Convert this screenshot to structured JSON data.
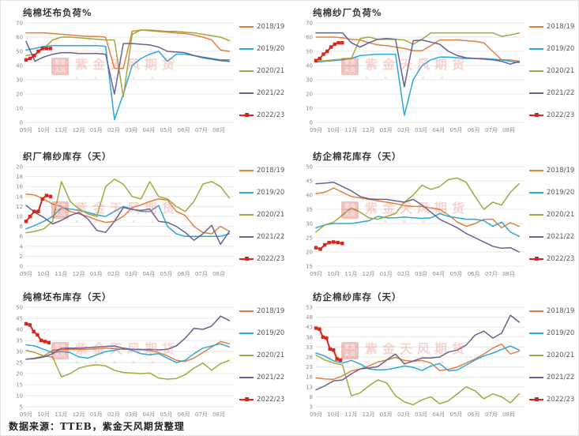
{
  "page": {
    "source_note": "数据来源：TTEB，紫金天风期货整理",
    "watermark": {
      "seal_line1": "紫金",
      "seal_line2": "天风",
      "text": "紫金天风期货"
    }
  },
  "colors": {
    "s2018": "#E2813B",
    "s2019": "#2BA8DC",
    "s2020": "#A2A83E",
    "s2021": "#67618F",
    "s2022": "#D9251D",
    "grid": "#e7e7e7",
    "tick_text": "#8c8c8c"
  },
  "chart_data": [
    {
      "type": "line",
      "title": "纯棉坯布负荷%",
      "x_tick_labels": [
        "09月",
        "10月",
        "11月",
        "12月",
        "01月",
        "02月",
        "03月",
        "04月",
        "05月",
        "06月",
        "07月",
        "08月"
      ],
      "ylim": [
        0,
        70
      ],
      "yticks": [
        0,
        10,
        20,
        30,
        40,
        50,
        60,
        70
      ],
      "grid": true,
      "legend_position": "right",
      "series": [
        {
          "name": "2018/19",
          "color": "#E2813B",
          "x_range": [
            0,
            11.6
          ],
          "values": [
            63,
            63,
            63,
            62.5,
            62,
            61.5,
            61,
            60.5,
            60.5,
            60,
            38,
            38,
            64,
            65,
            64.5,
            64,
            63.5,
            63,
            62.5,
            61.5,
            60,
            58,
            51,
            50
          ]
        },
        {
          "name": "2019/20",
          "color": "#2BA8DC",
          "x_range": [
            0,
            11.6
          ],
          "values": [
            51,
            52,
            53.5,
            54,
            54,
            54,
            54,
            54,
            54,
            53.5,
            2,
            20,
            40,
            45,
            48,
            50,
            43,
            48,
            48,
            47,
            46,
            45,
            44,
            44
          ]
        },
        {
          "name": "2020/21",
          "color": "#A2A83E",
          "x_range": [
            0,
            11.6
          ],
          "values": [
            47,
            48,
            52,
            58,
            60,
            60,
            59.5,
            59,
            58.5,
            58,
            58,
            18,
            62,
            65,
            65,
            64.5,
            64,
            64,
            63.5,
            63,
            62,
            61,
            60,
            57.5
          ]
        },
        {
          "name": "2021/22",
          "color": "#67618F",
          "x_range": [
            0,
            11.6
          ],
          "values": [
            57,
            43,
            46,
            48,
            49,
            49,
            48.5,
            48.5,
            48.5,
            48,
            20,
            55.5,
            55.5,
            55,
            54.5,
            53,
            50,
            49.5,
            49,
            47,
            45.5,
            44.5,
            43.5,
            43
          ]
        },
        {
          "name": "2022/23",
          "color": "#D9251D",
          "marker": true,
          "x_range": [
            0,
            1.4
          ],
          "values": [
            44,
            45,
            47,
            50,
            52,
            52,
            52
          ]
        }
      ]
    },
    {
      "type": "line",
      "title": "纯棉纱厂负荷%",
      "x_tick_labels": [
        "09月",
        "10月",
        "11月",
        "12月",
        "01月",
        "02月",
        "03月",
        "04月",
        "05月",
        "06月",
        "07月",
        "08月"
      ],
      "ylim": [
        0,
        70
      ],
      "yticks": [
        0,
        10,
        20,
        30,
        40,
        50,
        60,
        70
      ],
      "grid": true,
      "legend_position": "right",
      "series": [
        {
          "name": "2018/19",
          "color": "#E2813B",
          "x_range": [
            0,
            11.6
          ],
          "values": [
            60,
            60,
            60,
            59.5,
            58.5,
            58,
            56,
            54.5,
            54,
            53,
            52,
            50.5,
            50.5,
            54,
            58,
            58,
            58,
            57.5,
            57,
            56,
            50,
            44,
            44,
            43
          ]
        },
        {
          "name": "2019/20",
          "color": "#2BA8DC",
          "x_range": [
            0,
            11.6
          ],
          "values": [
            42.5,
            43,
            43.5,
            44,
            45,
            47,
            47.5,
            48,
            48,
            48,
            5,
            30,
            40,
            44,
            46,
            46,
            45.5,
            45,
            45,
            45,
            44.5,
            44,
            43,
            42
          ]
        },
        {
          "name": "2020/21",
          "color": "#A2A83E",
          "x_range": [
            0,
            11.6
          ],
          "values": [
            43,
            43.5,
            44,
            44.5,
            45,
            59,
            60,
            58.5,
            58.5,
            58.5,
            58,
            55,
            58.5,
            63,
            63,
            63,
            63,
            63,
            63,
            63,
            63,
            60.5,
            61.5,
            63
          ]
        },
        {
          "name": "2021/22",
          "color": "#67618F",
          "x_range": [
            0,
            11.6
          ],
          "values": [
            63,
            63,
            63,
            63,
            56,
            53,
            56,
            58.5,
            59,
            58.5,
            25,
            57.5,
            58,
            56.5,
            55,
            50,
            47,
            45.5,
            45,
            44.5,
            44,
            43,
            41,
            43
          ]
        },
        {
          "name": "2022/23",
          "color": "#D9251D",
          "marker": true,
          "x_range": [
            0,
            1.5
          ],
          "values": [
            43.5,
            45,
            48,
            50,
            53,
            55,
            56,
            56
          ]
        }
      ]
    },
    {
      "type": "line",
      "title": "织厂棉纱库存（天）",
      "x_tick_labels": [
        "09月",
        "10月",
        "11月",
        "12月",
        "01月",
        "02月",
        "03月",
        "04月",
        "05月",
        "06月",
        "07月",
        "08月"
      ],
      "ylim": [
        0,
        20
      ],
      "yticks": [
        0,
        2,
        4,
        6,
        8,
        10,
        12,
        14,
        16,
        18,
        20
      ],
      "grid": true,
      "legend_position": "right",
      "series": [
        {
          "name": "2018/19",
          "color": "#E2813B",
          "x_range": [
            0,
            11.6
          ],
          "values": [
            14.5,
            14.3,
            13.5,
            12.5,
            12,
            11,
            10.5,
            10,
            9.3,
            8.8,
            9,
            10,
            11.8,
            12.3,
            13,
            13.5,
            13.3,
            11,
            10.2,
            8,
            6.8,
            6.5,
            8,
            7
          ]
        },
        {
          "name": "2019/20",
          "color": "#2BA8DC",
          "x_range": [
            0,
            11.6
          ],
          "values": [
            7.5,
            8.2,
            9,
            10,
            11.7,
            11.5,
            11.2,
            10.8,
            10.3,
            10,
            11,
            12,
            11.5,
            11,
            11,
            12.2,
            8,
            6.5,
            6,
            6,
            6,
            6,
            6,
            6.5
          ]
        },
        {
          "name": "2020/21",
          "color": "#A2A83E",
          "x_range": [
            0,
            11.6
          ],
          "values": [
            6.7,
            7,
            7.5,
            9,
            17,
            13,
            11.5,
            10.5,
            10,
            16,
            17.5,
            16.5,
            14,
            13.5,
            17,
            14,
            13.5,
            12,
            11,
            13,
            16.5,
            17,
            16,
            13.7
          ]
        },
        {
          "name": "2021/22",
          "color": "#67618F",
          "x_range": [
            0,
            11.6
          ],
          "values": [
            12.2,
            10.8,
            9.8,
            8.5,
            9.2,
            10.2,
            10.8,
            9.5,
            7.2,
            6.8,
            9,
            11.8,
            11.4,
            11.2,
            11.5,
            9,
            8.8,
            8,
            6.8,
            5.2,
            6.5,
            8.2,
            4.4,
            7
          ]
        },
        {
          "name": "2022/23",
          "color": "#D9251D",
          "marker": true,
          "x_range": [
            0,
            1.4
          ],
          "values": [
            9,
            10,
            11,
            11,
            13.5,
            14.2,
            14
          ]
        }
      ]
    },
    {
      "type": "line",
      "title": "纺企棉花库存（天）",
      "x_tick_labels": [
        "09月",
        "10月",
        "11月",
        "12月",
        "01月",
        "02月",
        "03月",
        "04月",
        "05月",
        "06月",
        "07月",
        "08月"
      ],
      "ylim": [
        15,
        50
      ],
      "yticks": [
        15,
        20,
        25,
        30,
        35,
        40,
        45,
        50
      ],
      "grid": true,
      "legend_position": "right",
      "series": [
        {
          "name": "2018/19",
          "color": "#E2813B",
          "x_range": [
            0,
            11.6
          ],
          "values": [
            40.5,
            41,
            42.5,
            41,
            39.5,
            39,
            38.5,
            38,
            37.5,
            37,
            36.3,
            36,
            36,
            35.5,
            35,
            33,
            30.5,
            29,
            30,
            31.5,
            31.5,
            28.5,
            30.3,
            29
          ]
        },
        {
          "name": "2019/20",
          "color": "#2BA8DC",
          "x_range": [
            0,
            11.6
          ],
          "values": [
            28.5,
            29.5,
            30,
            30,
            30,
            30.5,
            31,
            32.5,
            32,
            32,
            32.3,
            32,
            31.8,
            32,
            33.5,
            32.5,
            32,
            31.5,
            31.5,
            31,
            29,
            30.5,
            27,
            25.5
          ]
        },
        {
          "name": "2020/21",
          "color": "#A2A83E",
          "x_range": [
            0,
            11.6
          ],
          "values": [
            27,
            29.5,
            30.5,
            33,
            35.5,
            34,
            32,
            31.5,
            32.5,
            33.5,
            37.5,
            40,
            43.5,
            42,
            43,
            45.5,
            46,
            44.5,
            39.5,
            35,
            37.5,
            36.5,
            41,
            44
          ]
        },
        {
          "name": "2021/22",
          "color": "#67618F",
          "x_range": [
            0,
            11.6
          ],
          "values": [
            44,
            44.2,
            44.5,
            43,
            41.5,
            39.5,
            38.7,
            38.5,
            38.5,
            38,
            37.5,
            38.5,
            36.5,
            34,
            31.5,
            30,
            28.5,
            26.5,
            25,
            23.5,
            22,
            21.3,
            21.5,
            20
          ]
        },
        {
          "name": "2022/23",
          "color": "#D9251D",
          "marker": true,
          "x_range": [
            0,
            1.5
          ],
          "values": [
            21.5,
            21,
            22.5,
            23.3,
            23.5,
            23.3,
            23
          ]
        }
      ]
    },
    {
      "type": "line",
      "title": "纯棉坯布库存（天）",
      "x_tick_labels": [
        "09月",
        "10月",
        "11月",
        "12月",
        "01月",
        "02月",
        "03月",
        "04月",
        "05月",
        "06月",
        "07月",
        "08月"
      ],
      "ylim": [
        5,
        50
      ],
      "yticks": [
        5,
        10,
        15,
        20,
        25,
        30,
        35,
        40,
        45,
        50
      ],
      "grid": true,
      "legend_position": "right",
      "series": [
        {
          "name": "2018/19",
          "color": "#E2813B",
          "x_range": [
            0,
            11.6
          ],
          "values": [
            26.5,
            27,
            28,
            30.5,
            31,
            31,
            31,
            31,
            31.3,
            31.5,
            31.3,
            31,
            31,
            31,
            30.5,
            29.5,
            28,
            26,
            25.5,
            27,
            29.5,
            32,
            34.5,
            33.5
          ]
        },
        {
          "name": "2019/20",
          "color": "#2BA8DC",
          "x_range": [
            0,
            11.6
          ],
          "values": [
            33,
            32.5,
            31,
            29.5,
            30,
            29.5,
            27.5,
            27,
            28.5,
            30,
            30.5,
            31.5,
            30.5,
            29,
            28.5,
            29,
            27,
            25,
            26,
            29,
            31.5,
            32.5,
            33.5,
            32
          ]
        },
        {
          "name": "2020/21",
          "color": "#A2A83E",
          "x_range": [
            0,
            11.6
          ],
          "values": [
            30.5,
            29.5,
            28,
            27.5,
            18.5,
            20,
            22.5,
            23.5,
            24,
            23.5,
            21.5,
            20.5,
            20.3,
            20,
            20.3,
            18,
            17.5,
            17.8,
            19.5,
            22.5,
            24.8,
            21.5,
            24.5,
            26
          ]
        },
        {
          "name": "2021/22",
          "color": "#67618F",
          "x_range": [
            0,
            11.6
          ],
          "values": [
            26.5,
            26.8,
            27.5,
            29,
            31.5,
            31.5,
            31.5,
            31.7,
            32,
            32.3,
            32.5,
            31.5,
            31,
            30.8,
            31,
            30.7,
            31,
            32.5,
            36,
            40.5,
            40,
            41.5,
            46,
            44
          ]
        },
        {
          "name": "2022/23",
          "color": "#D9251D",
          "marker": true,
          "x_range": [
            0,
            1.3
          ],
          "values": [
            42.5,
            42,
            39,
            37.5,
            35,
            34.5,
            34
          ]
        }
      ]
    },
    {
      "type": "line",
      "title": "纺企棉纱库存（天）",
      "x_tick_labels": [
        "09月",
        "10月",
        "11月",
        "12月",
        "01月",
        "02月",
        "03月",
        "04月",
        "05月",
        "06月",
        "07月",
        "08月"
      ],
      "ylim": [
        3,
        53
      ],
      "yticks": [
        3,
        8,
        13,
        18,
        23,
        28,
        33,
        38,
        43,
        48,
        53
      ],
      "grid": true,
      "legend_position": "right",
      "series": [
        {
          "name": "2018/19",
          "color": "#E2813B",
          "x_range": [
            0,
            11.6
          ],
          "values": [
            17.5,
            17,
            16.8,
            18.5,
            21,
            22,
            23.5,
            25.5,
            26.5,
            27.8,
            26.3,
            25.8,
            26.3,
            25,
            21.2,
            21.8,
            23,
            25,
            27,
            29.5,
            32.5,
            34.5,
            29.5,
            31
          ]
        },
        {
          "name": "2019/20",
          "color": "#2BA8DC",
          "x_range": [
            0,
            11.6
          ],
          "values": [
            30,
            28.5,
            26,
            25,
            26.3,
            24.5,
            22,
            21.5,
            21.7,
            22.5,
            23.5,
            22.8,
            21.2,
            23.5,
            24.8,
            21,
            21.5,
            24,
            26.5,
            28.5,
            30,
            31.8,
            33.5,
            31.5
          ]
        },
        {
          "name": "2020/21",
          "color": "#A2A83E",
          "x_range": [
            0,
            11.6
          ],
          "values": [
            29,
            26.5,
            25,
            24,
            8.5,
            10,
            13.5,
            16.5,
            15,
            8.5,
            5.5,
            4,
            6.5,
            8,
            4.5,
            6,
            9.5,
            13,
            11,
            7,
            9.5,
            8,
            5,
            9.5
          ]
        },
        {
          "name": "2021/22",
          "color": "#67618F",
          "x_range": [
            0,
            11.6
          ],
          "values": [
            11.5,
            13.5,
            16,
            16.5,
            19.5,
            22,
            22.5,
            23.2,
            26.5,
            29.5,
            24.5,
            26,
            27.5,
            27.5,
            28,
            30.5,
            31.5,
            34,
            39,
            41,
            37.5,
            40,
            49,
            45.5
          ]
        },
        {
          "name": "2022/23",
          "color": "#D9251D",
          "marker": true,
          "x_range": [
            0,
            1.4
          ],
          "values": [
            42.5,
            42,
            38,
            37.5,
            32,
            31.5,
            27,
            26.5
          ]
        }
      ]
    }
  ]
}
